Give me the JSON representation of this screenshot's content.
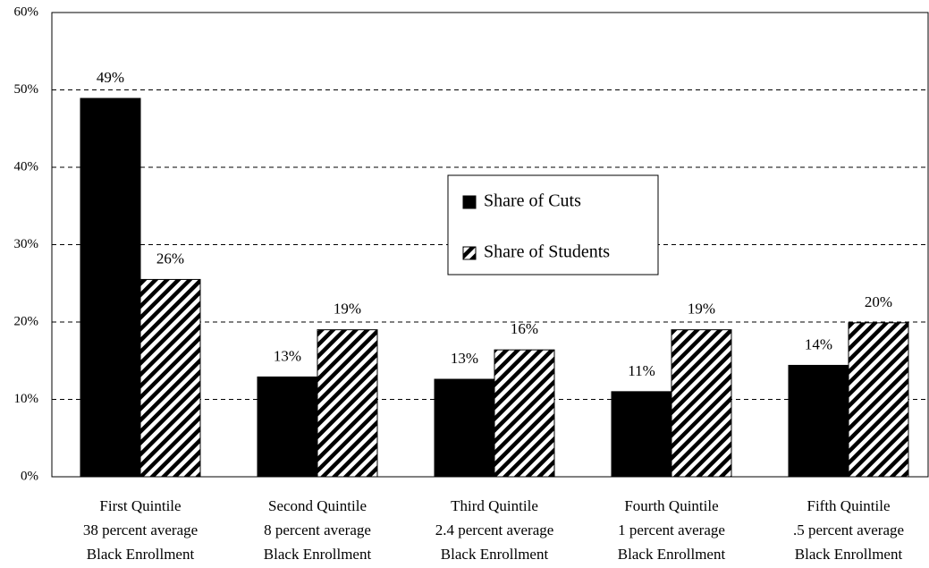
{
  "chart_data": {
    "type": "bar",
    "categories": [
      [
        "First Quintile",
        "38 percent average",
        "Black Enrollment"
      ],
      [
        "Second Quintile",
        "8 percent average",
        "Black Enrollment"
      ],
      [
        "Third Quintile",
        "2.4 percent average",
        "Black Enrollment"
      ],
      [
        "Fourth Quintile",
        "1 percent average",
        "Black Enrollment"
      ],
      [
        "Fifth Quintile",
        ".5 percent average",
        "Black Enrollment"
      ]
    ],
    "series": [
      {
        "name": "Share of Cuts",
        "color": "#000000",
        "fill": "solid",
        "values": [
          48.9,
          12.9,
          12.6,
          11.0,
          14.4
        ],
        "value_labels": [
          "49%",
          "13%",
          "13%",
          "11%",
          "14%"
        ]
      },
      {
        "name": "Share of Students",
        "color": "#000000",
        "fill": "hatch",
        "values": [
          25.5,
          19.0,
          16.4,
          19.0,
          19.9
        ],
        "value_labels": [
          "26%",
          "19%",
          "16%",
          "19%",
          "20%"
        ]
      }
    ],
    "ylim": [
      0,
      60
    ],
    "yticks": [
      {
        "value": 0,
        "label": "0%"
      },
      {
        "value": 10,
        "label": "10%"
      },
      {
        "value": 20,
        "label": "20%"
      },
      {
        "value": 30,
        "label": "30%"
      },
      {
        "value": 40,
        "label": "40%"
      },
      {
        "value": 50,
        "label": "50%"
      },
      {
        "value": 60,
        "label": "60%"
      }
    ],
    "grid": true,
    "legend": "center"
  }
}
